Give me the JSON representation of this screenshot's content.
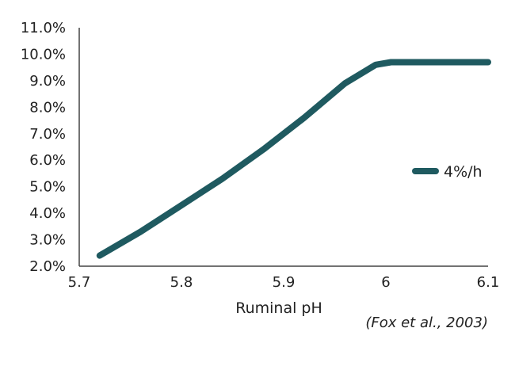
{
  "chart_data": {
    "type": "line",
    "xlabel": "Ruminal pH",
    "ylabel": "",
    "title": "",
    "xlim": [
      5.7,
      6.1
    ],
    "ylim": [
      2.0,
      11.0
    ],
    "x_ticks": [
      "5.7",
      "5.8",
      "5.9",
      "6",
      "6.1"
    ],
    "y_ticks": [
      "2.0%",
      "3.0%",
      "4.0%",
      "5.0%",
      "6.0%",
      "7.0%",
      "8.0%",
      "9.0%",
      "10.0%",
      "11.0%"
    ],
    "series": [
      {
        "name": "4%/h",
        "color": "#1f5a60",
        "x": [
          5.72,
          5.76,
          5.8,
          5.84,
          5.88,
          5.92,
          5.96,
          5.99,
          6.005,
          6.05,
          6.1
        ],
        "y": [
          2.4,
          3.3,
          4.3,
          5.3,
          6.4,
          7.6,
          8.9,
          9.6,
          9.7,
          9.7,
          9.7
        ]
      }
    ],
    "legend_position": "right",
    "grid": false,
    "source_note": "(Fox et al., 2003)"
  }
}
